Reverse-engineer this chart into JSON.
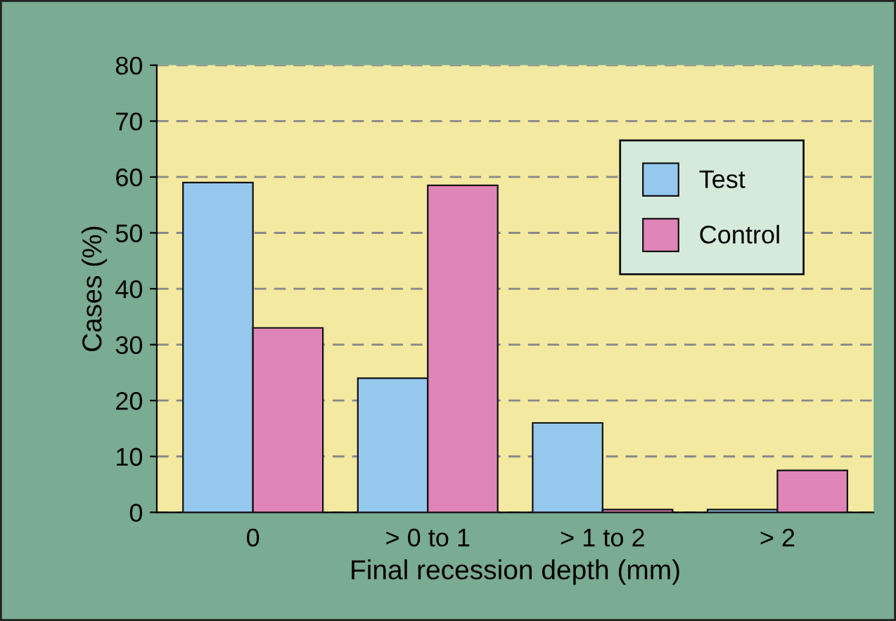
{
  "chart_data": {
    "type": "bar",
    "xlabel": "Final recession depth (mm)",
    "ylabel": "Cases (%)",
    "categories": [
      "0",
      "> 0 to 1",
      "> 1 to 2",
      "> 2"
    ],
    "series": [
      {
        "name": "Test",
        "color": "#96c8ee",
        "values": [
          59,
          24,
          16,
          0.5
        ]
      },
      {
        "name": "Control",
        "color": "#e085b9",
        "values": [
          33,
          58.5,
          0.5,
          7.5
        ]
      }
    ],
    "ylim": [
      0,
      80
    ],
    "yticks": [
      0,
      10,
      20,
      30,
      40,
      50,
      60,
      70,
      80
    ],
    "grid": "y",
    "legend": "top right"
  }
}
